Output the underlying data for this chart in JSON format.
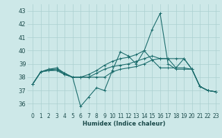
{
  "xlabel": "Humidex (Indice chaleur)",
  "ylabel": "",
  "xlim": [
    -0.5,
    23.5
  ],
  "ylim": [
    35.5,
    43.5
  ],
  "yticks": [
    36,
    37,
    38,
    39,
    40,
    41,
    42,
    43
  ],
  "xticks": [
    0,
    1,
    2,
    3,
    4,
    5,
    6,
    7,
    8,
    9,
    10,
    11,
    12,
    13,
    14,
    15,
    16,
    17,
    18,
    19,
    20,
    21,
    22,
    23
  ],
  "background_color": "#cde8e8",
  "grid_color": "#aacfcf",
  "line_color": "#1a6b6b",
  "lines": [
    [
      37.5,
      38.4,
      38.5,
      38.5,
      38.2,
      38.0,
      35.8,
      36.5,
      37.2,
      37.0,
      38.5,
      39.9,
      39.6,
      39.0,
      40.0,
      41.6,
      42.8,
      39.0,
      38.6,
      38.6,
      38.6,
      37.3,
      37.0,
      36.9
    ],
    [
      37.5,
      38.4,
      38.5,
      38.6,
      38.2,
      38.0,
      38.0,
      38.0,
      38.0,
      38.0,
      38.4,
      38.6,
      38.7,
      38.8,
      39.0,
      39.3,
      39.4,
      39.4,
      39.4,
      39.4,
      38.6,
      37.3,
      37.0,
      36.9
    ],
    [
      37.5,
      38.4,
      38.6,
      38.6,
      38.3,
      38.0,
      38.0,
      38.0,
      38.3,
      38.6,
      38.8,
      38.9,
      39.0,
      39.2,
      39.4,
      39.6,
      39.4,
      39.4,
      38.7,
      38.7,
      38.6,
      37.3,
      37.0,
      36.9
    ],
    [
      37.5,
      38.4,
      38.6,
      38.7,
      38.3,
      38.0,
      38.0,
      38.2,
      38.5,
      38.9,
      39.2,
      39.4,
      39.5,
      39.7,
      40.0,
      39.3,
      38.7,
      38.7,
      38.7,
      39.4,
      38.6,
      37.3,
      37.0,
      36.9
    ]
  ],
  "xlabel_fontsize": 6.0,
  "xlabel_color": "#1a4a4a",
  "tick_fontsize": 5.5,
  "ytick_fontsize": 6.0
}
